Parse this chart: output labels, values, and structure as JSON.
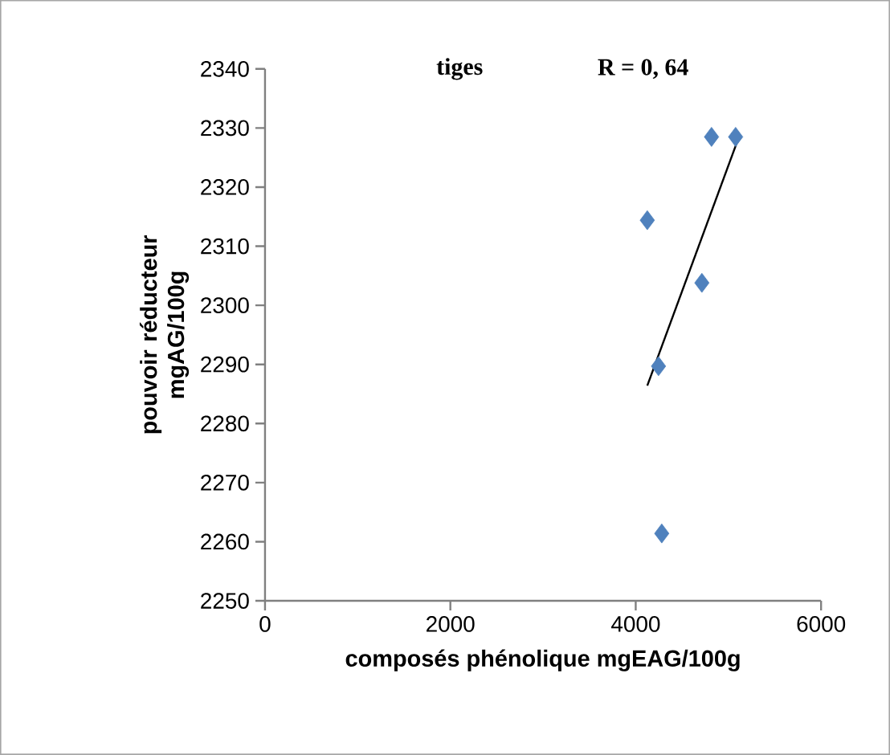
{
  "chart_data": {
    "type": "scatter",
    "title": "tiges",
    "annotations": [
      "R = 0, 64"
    ],
    "xlabel": "composés phénolique mgEAG/100g",
    "ylabel": "pouvoir réducteur mgAG/100g",
    "xlim": [
      0,
      6000
    ],
    "xticks": [
      0,
      2000,
      4000,
      6000
    ],
    "ylim": [
      2250,
      2340
    ],
    "yticks": [
      2250,
      2260,
      2270,
      2280,
      2290,
      2300,
      2310,
      2320,
      2330,
      2340
    ],
    "grid": false,
    "series": [
      {
        "color": "#4f81bd",
        "marker": "diamond",
        "x": [
          4125,
          4714,
          4818,
          5078,
          4246,
          4281
        ],
        "values": [
          2314.4,
          2303.8,
          2328.5,
          2328.5,
          2289.7,
          2261.4
        ]
      },
      {
        "type": "line",
        "color": "#000000",
        "marker": "none",
        "x": [
          4125,
          5095
        ],
        "values": [
          2286.4,
          2327.7
        ]
      }
    ]
  }
}
